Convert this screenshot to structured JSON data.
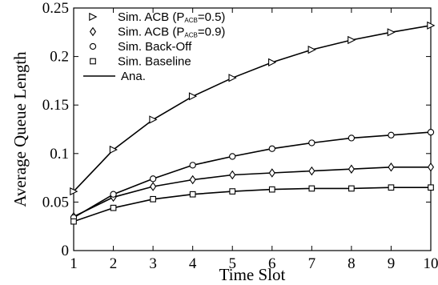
{
  "chart_data": {
    "type": "line",
    "xlabel": "Time Slot",
    "ylabel": "Average Queue Length",
    "xlim": [
      1,
      10
    ],
    "ylim": [
      0,
      0.25
    ],
    "x_ticks": [
      1,
      2,
      3,
      4,
      5,
      6,
      7,
      8,
      9,
      10
    ],
    "y_ticks": [
      0,
      0.05,
      0.1,
      0.15,
      0.2,
      0.25
    ],
    "y_tick_labels": [
      "0",
      "0.05",
      "0.1",
      "0.15",
      "0.2",
      "0.25"
    ],
    "grid": false,
    "legend_position": "top-left",
    "x": [
      1,
      2,
      3,
      4,
      5,
      6,
      7,
      8,
      9,
      10
    ],
    "series": [
      {
        "name": "Sim. ACB (P",
        "name_sub": "ACB",
        "name_suffix": "=0.5)",
        "marker": "triangle-right",
        "values": [
          0.061,
          0.104,
          0.135,
          0.159,
          0.178,
          0.194,
          0.207,
          0.217,
          0.225,
          0.232
        ]
      },
      {
        "name": "Sim. ACB (P",
        "name_sub": "ACB",
        "name_suffix": "=0.9)",
        "marker": "diamond",
        "values": [
          0.035,
          0.055,
          0.066,
          0.073,
          0.078,
          0.08,
          0.082,
          0.084,
          0.086,
          0.086
        ]
      },
      {
        "name": "Sim. Back-Off",
        "marker": "circle",
        "values": [
          0.034,
          0.058,
          0.074,
          0.088,
          0.097,
          0.105,
          0.111,
          0.116,
          0.119,
          0.122
        ]
      },
      {
        "name": "Sim. Baseline",
        "marker": "square",
        "values": [
          0.03,
          0.044,
          0.053,
          0.058,
          0.061,
          0.063,
          0.064,
          0.064,
          0.065,
          0.065
        ]
      }
    ],
    "analytic_legend": "Ana."
  }
}
